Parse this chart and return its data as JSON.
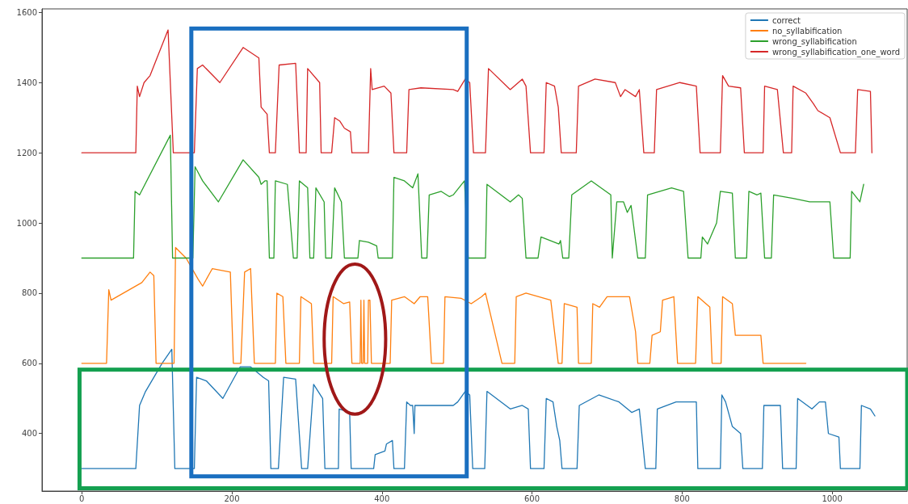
{
  "chart_data": {
    "type": "line",
    "xlim": [
      -53,
      1100
    ],
    "xticks": [
      0,
      200,
      400,
      600,
      800,
      1000
    ],
    "ylim": [
      236,
      1610
    ],
    "yticks": [
      400,
      600,
      800,
      1000,
      1200,
      1400,
      1600
    ],
    "grid": false,
    "legend": "top right",
    "marker": "none",
    "line_style": "solid",
    "series": [
      {
        "name": "correct",
        "color": "#1f77b4",
        "x": [
          0,
          72,
          77,
          85,
          107,
          120,
          124,
          150,
          153,
          166,
          188,
          211,
          225,
          242,
          249,
          252,
          262,
          269,
          285,
          293,
          301,
          309,
          321,
          324,
          342,
          343,
          357,
          359,
          389,
          391,
          404,
          406,
          414,
          416,
          430,
          433,
          438,
          441,
          443,
          444,
          495,
          501,
          511,
          517,
          521,
          537,
          540,
          571,
          587,
          595,
          598,
          616,
          619,
          628,
          633,
          637,
          640,
          660,
          663,
          689,
          716,
          733,
          743,
          751,
          765,
          767,
          792,
          819,
          821,
          851,
          853,
          858,
          867,
          878,
          881,
          907,
          909,
          931,
          934,
          952,
          954,
          973,
          983,
          991,
          995,
          1009,
          1011,
          1037,
          1039,
          1051,
          1057
        ],
        "values": [
          300,
          300,
          480,
          520,
          600,
          640,
          300,
          300,
          560,
          550,
          500,
          590,
          590,
          560,
          550,
          300,
          300,
          560,
          555,
          300,
          300,
          540,
          500,
          300,
          300,
          470,
          460,
          300,
          300,
          340,
          350,
          370,
          380,
          300,
          300,
          490,
          480,
          480,
          400,
          480,
          480,
          490,
          520,
          510,
          300,
          300,
          520,
          470,
          480,
          470,
          300,
          300,
          500,
          490,
          420,
          380,
          300,
          300,
          480,
          510,
          490,
          460,
          470,
          300,
          300,
          470,
          490,
          490,
          300,
          300,
          510,
          490,
          420,
          400,
          300,
          300,
          480,
          480,
          300,
          300,
          500,
          470,
          490,
          490,
          400,
          390,
          300,
          300,
          480,
          470,
          450
        ]
      },
      {
        "name": "no_syllabification",
        "color": "#ff7f0e",
        "x": [
          0,
          33,
          36,
          39,
          80,
          91,
          96,
          99,
          123,
          125,
          139,
          155,
          161,
          174,
          198,
          202,
          212,
          217,
          225,
          230,
          258,
          260,
          268,
          272,
          290,
          292,
          306,
          309,
          333,
          335,
          349,
          357,
          360,
          371,
          372,
          373,
          375,
          376,
          377,
          381,
          382,
          384,
          386,
          411,
          413,
          430,
          443,
          451,
          461,
          466,
          482,
          484,
          506,
          519,
          533,
          538,
          560,
          577,
          579,
          592,
          625,
          635,
          640,
          643,
          660,
          662,
          679,
          681,
          690,
          700,
          730,
          738,
          741,
          757,
          760,
          771,
          774,
          789,
          794,
          818,
          821,
          837,
          840,
          852,
          854,
          867,
          871,
          905,
          908,
          965
        ],
        "values": [
          600,
          600,
          810,
          780,
          830,
          860,
          850,
          600,
          600,
          930,
          900,
          840,
          820,
          870,
          860,
          600,
          600,
          860,
          870,
          600,
          600,
          800,
          790,
          600,
          600,
          790,
          770,
          600,
          600,
          790,
          770,
          775,
          600,
          600,
          780,
          600,
          600,
          780,
          600,
          600,
          780,
          780,
          600,
          600,
          780,
          790,
          770,
          790,
          790,
          600,
          600,
          790,
          785,
          770,
          790,
          800,
          600,
          600,
          790,
          800,
          780,
          600,
          600,
          770,
          760,
          600,
          600,
          770,
          760,
          790,
          790,
          690,
          600,
          600,
          680,
          690,
          780,
          790,
          600,
          600,
          790,
          760,
          600,
          600,
          790,
          770,
          680,
          680,
          600,
          600
        ]
      },
      {
        "name": "wrong_syllabification",
        "color": "#2ca02c",
        "x": [
          0,
          69,
          71,
          77,
          118,
          121,
          148,
          151,
          161,
          182,
          215,
          236,
          239,
          244,
          247,
          250,
          256,
          258,
          274,
          282,
          287,
          290,
          301,
          304,
          309,
          312,
          323,
          325,
          333,
          337,
          346,
          350,
          368,
          370,
          382,
          393,
          395,
          414,
          416,
          430,
          441,
          448,
          453,
          460,
          463,
          479,
          490,
          495,
          510,
          515,
          538,
          540,
          571,
          582,
          587,
          592,
          608,
          612,
          636,
          638,
          641,
          649,
          653,
          679,
          705,
          707,
          713,
          722,
          727,
          732,
          741,
          751,
          754,
          786,
          802,
          808,
          825,
          827,
          834,
          846,
          851,
          867,
          871,
          886,
          889,
          900,
          905,
          910,
          919,
          922,
          948,
          970,
          997,
          1002,
          1024,
          1026,
          1037,
          1042
        ],
        "values": [
          900,
          900,
          1090,
          1080,
          1250,
          900,
          900,
          1160,
          1120,
          1060,
          1180,
          1130,
          1110,
          1120,
          1120,
          900,
          900,
          1120,
          1110,
          900,
          900,
          1120,
          1100,
          900,
          900,
          1100,
          1060,
          900,
          900,
          1100,
          1060,
          900,
          900,
          950,
          945,
          935,
          900,
          900,
          1130,
          1120,
          1100,
          1140,
          900,
          900,
          1080,
          1090,
          1075,
          1080,
          1120,
          900,
          900,
          1110,
          1060,
          1080,
          1070,
          900,
          900,
          960,
          940,
          950,
          900,
          900,
          1080,
          1120,
          1080,
          900,
          1060,
          1060,
          1030,
          1050,
          900,
          900,
          1080,
          1100,
          1090,
          900,
          900,
          960,
          940,
          1000,
          1090,
          1085,
          900,
          900,
          1090,
          1080,
          1085,
          900,
          900,
          1080,
          1070,
          1060,
          1060,
          900,
          900,
          1090,
          1060,
          1110
        ]
      },
      {
        "name": "wrong_syllabification_one_word",
        "color": "#d62728",
        "x": [
          0,
          72,
          74,
          77,
          83,
          91,
          115,
          122,
          150,
          154,
          161,
          184,
          215,
          236,
          239,
          247,
          250,
          258,
          263,
          285,
          290,
          299,
          301,
          317,
          319,
          333,
          337,
          344,
          350,
          358,
          360,
          382,
          385,
          387,
          403,
          412,
          416,
          433,
          436,
          452,
          495,
          501,
          511,
          517,
          522,
          538,
          542,
          571,
          587,
          592,
          598,
          616,
          619,
          630,
          635,
          639,
          659,
          662,
          684,
          711,
          718,
          724,
          738,
          743,
          749,
          763,
          766,
          797,
          819,
          824,
          851,
          854,
          862,
          878,
          883,
          908,
          910,
          927,
          935,
          946,
          948,
          965,
          975,
          981,
          997,
          1011,
          1031,
          1034,
          1051,
          1053
        ],
        "values": [
          1200,
          1200,
          1390,
          1360,
          1400,
          1420,
          1550,
          1200,
          1200,
          1440,
          1450,
          1400,
          1500,
          1470,
          1330,
          1310,
          1200,
          1200,
          1450,
          1455,
          1200,
          1200,
          1440,
          1400,
          1200,
          1200,
          1300,
          1290,
          1270,
          1260,
          1200,
          1200,
          1440,
          1380,
          1390,
          1370,
          1200,
          1200,
          1380,
          1385,
          1380,
          1375,
          1410,
          1400,
          1200,
          1200,
          1440,
          1380,
          1410,
          1390,
          1200,
          1200,
          1400,
          1390,
          1330,
          1200,
          1200,
          1390,
          1410,
          1400,
          1360,
          1380,
          1360,
          1380,
          1200,
          1200,
          1380,
          1400,
          1390,
          1200,
          1200,
          1420,
          1390,
          1385,
          1200,
          1200,
          1390,
          1380,
          1200,
          1200,
          1390,
          1370,
          1340,
          1320,
          1300,
          1200,
          1200,
          1380,
          1375,
          1200
        ]
      }
    ]
  }
}
